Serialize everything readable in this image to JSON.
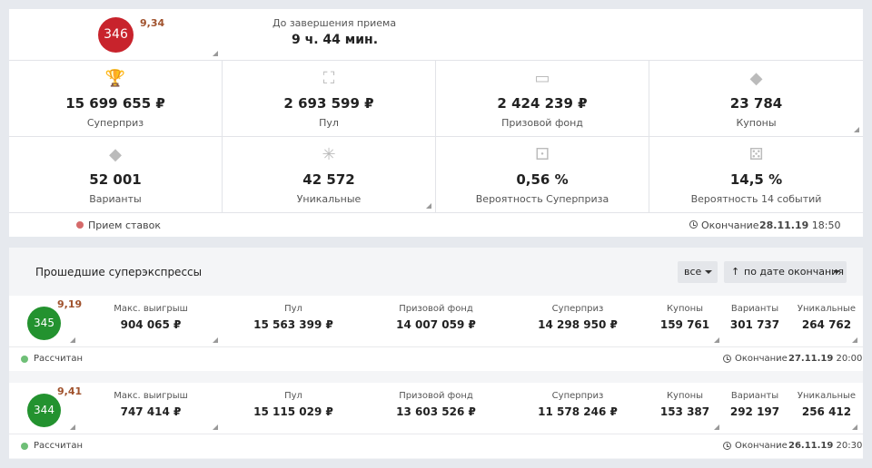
{
  "current": {
    "number": "346",
    "coef": "9,34",
    "timer_label": "До завершения приема",
    "timer_value": "9 ч. 44 мин.",
    "stats": [
      {
        "icon": "trophy-icon",
        "glyph": "🏆",
        "value": "15 699 655 ₽",
        "label": "Суперприз"
      },
      {
        "icon": "bag-icon",
        "glyph": "⛶",
        "value": "2 693 599 ₽",
        "label": "Пул"
      },
      {
        "icon": "banknote-icon",
        "glyph": "▭",
        "value": "2 424 239 ₽",
        "label": "Призовой фонд"
      },
      {
        "icon": "tag-icon",
        "glyph": "◆",
        "value": "23 784",
        "label": "Купоны"
      },
      {
        "icon": "tag-icon",
        "glyph": "◆",
        "value": "52 001",
        "label": "Варианты"
      },
      {
        "icon": "asterisk-icon",
        "glyph": "✳",
        "value": "42 572",
        "label": "Уникальные"
      },
      {
        "icon": "dice-icon",
        "glyph": "⚀",
        "value": "0,56 %",
        "label": "Вероятность Суперприза"
      },
      {
        "icon": "dice-icon",
        "glyph": "⚄",
        "value": "14,5 %",
        "label": "Вероятность 14 событий"
      }
    ],
    "status": "Прием ставок",
    "end_label": "Окончание",
    "end_date": "28.11.19",
    "end_time": "18:50"
  },
  "past": {
    "title": "Прошедшие суперэкспрессы",
    "filter_label": "все",
    "sort_label": "по дате окончания",
    "headers": {
      "max_win": "Макс. выигрыш",
      "pool": "Пул",
      "prize_fund": "Призовой фонд",
      "superprize": "Суперприз",
      "coupons": "Купоны",
      "variants": "Варианты",
      "unique": "Уникальные"
    },
    "items": [
      {
        "number": "345",
        "coef": "9,19",
        "max_win": "904 065 ₽",
        "pool": "15 563 399 ₽",
        "prize_fund": "14 007 059 ₽",
        "superprize": "14 298 950 ₽",
        "coupons": "159 761",
        "variants": "301 737",
        "unique": "264 762",
        "status": "Рассчитан",
        "end_label": "Окончание",
        "end_date": "27.11.19",
        "end_time": "20:00"
      },
      {
        "number": "344",
        "coef": "9,41",
        "max_win": "747 414 ₽",
        "pool": "15 115 029 ₽",
        "prize_fund": "13 603 526 ₽",
        "superprize": "11 578 246 ₽",
        "coupons": "153 387",
        "variants": "292 197",
        "unique": "256 412",
        "status": "Рассчитан",
        "end_label": "Окончание",
        "end_date": "26.11.19",
        "end_time": "20:30"
      }
    ]
  }
}
